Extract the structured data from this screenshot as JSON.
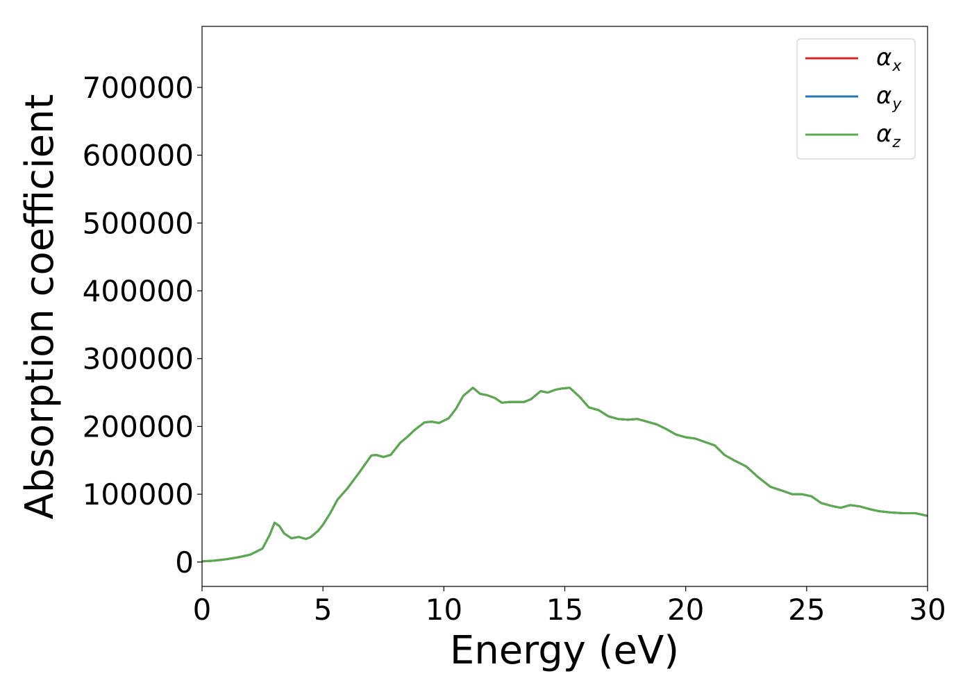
{
  "chart_data": {
    "type": "line",
    "xlabel": "Energy (eV)",
    "ylabel": "Absorption coefficient",
    "xlim": [
      0,
      30
    ],
    "ylim": [
      -36000,
      790000
    ],
    "xticks": [
      0,
      5,
      10,
      15,
      20,
      25,
      30
    ],
    "xtick_labels": [
      "0",
      "5",
      "10",
      "15",
      "20",
      "25",
      "30"
    ],
    "yticks": [
      0,
      100000,
      200000,
      300000,
      400000,
      500000,
      600000,
      700000
    ],
    "ytick_labels": [
      "0",
      "100000",
      "200000",
      "300000",
      "400000",
      "500000",
      "600000",
      "700000"
    ],
    "grid": false,
    "legend_position": "top-right",
    "x": [
      0,
      0.5,
      1.0,
      1.5,
      2.0,
      2.5,
      2.8,
      3.0,
      3.2,
      3.4,
      3.7,
      4.0,
      4.3,
      4.5,
      4.8,
      5.0,
      5.3,
      5.6,
      6.0,
      6.5,
      7.0,
      7.2,
      7.5,
      7.8,
      8.2,
      8.5,
      8.8,
      9.2,
      9.5,
      9.8,
      10.2,
      10.5,
      10.8,
      11.2,
      11.5,
      11.8,
      12.1,
      12.4,
      12.7,
      13.0,
      13.3,
      13.6,
      14.0,
      14.3,
      14.6,
      14.9,
      15.2,
      15.6,
      16.0,
      16.4,
      16.8,
      17.2,
      17.6,
      18.0,
      18.4,
      18.8,
      19.2,
      19.6,
      20.0,
      20.4,
      20.8,
      21.2,
      21.6,
      22.0,
      22.5,
      23.0,
      23.5,
      24.0,
      24.4,
      24.8,
      25.2,
      25.6,
      26.0,
      26.4,
      26.8,
      27.2,
      27.6,
      28.0,
      28.5,
      29.0,
      29.5,
      30.0
    ],
    "series": [
      {
        "name": "α_x",
        "color": "#d62728",
        "values": [
          1000,
          2000,
          4000,
          7000,
          11000,
          20000,
          40000,
          58000,
          53000,
          42000,
          35000,
          37000,
          34000,
          37000,
          46000,
          55000,
          72000,
          92000,
          108000,
          132000,
          157000,
          158000,
          155000,
          158000,
          176000,
          185000,
          195000,
          206000,
          207000,
          205000,
          212000,
          226000,
          245000,
          257000,
          248000,
          246000,
          242000,
          235000,
          236000,
          236000,
          236000,
          240000,
          252000,
          250000,
          254000,
          256000,
          257000,
          244000,
          228000,
          224000,
          215000,
          211000,
          210000,
          211000,
          207000,
          203000,
          196000,
          188000,
          184000,
          182000,
          177000,
          172000,
          158000,
          150000,
          141000,
          125000,
          111000,
          105000,
          100000,
          100000,
          97000,
          87000,
          83000,
          80000,
          84000,
          82000,
          78000,
          75000,
          73000,
          72000,
          72000,
          68000
        ]
      },
      {
        "name": "α_y",
        "color": "#1f77b4",
        "values": [
          1000,
          2000,
          4000,
          7000,
          11000,
          20000,
          40000,
          58000,
          53000,
          42000,
          35000,
          37000,
          34000,
          37000,
          46000,
          55000,
          72000,
          92000,
          108000,
          132000,
          157000,
          158000,
          155000,
          158000,
          176000,
          185000,
          195000,
          206000,
          207000,
          205000,
          212000,
          226000,
          245000,
          257000,
          248000,
          246000,
          242000,
          235000,
          236000,
          236000,
          236000,
          240000,
          252000,
          250000,
          254000,
          256000,
          257000,
          244000,
          228000,
          224000,
          215000,
          211000,
          210000,
          211000,
          207000,
          203000,
          196000,
          188000,
          184000,
          182000,
          177000,
          172000,
          158000,
          150000,
          141000,
          125000,
          111000,
          105000,
          100000,
          100000,
          97000,
          87000,
          83000,
          80000,
          84000,
          82000,
          78000,
          75000,
          73000,
          72000,
          72000,
          68000
        ]
      },
      {
        "name": "α_z",
        "color": "#5aaa4d",
        "values": [
          1000,
          2000,
          4000,
          7000,
          11000,
          20000,
          40000,
          58000,
          53000,
          42000,
          35000,
          37000,
          34000,
          37000,
          46000,
          55000,
          72000,
          92000,
          108000,
          132000,
          157000,
          158000,
          155000,
          158000,
          176000,
          185000,
          195000,
          206000,
          207000,
          205000,
          212000,
          226000,
          245000,
          257000,
          248000,
          246000,
          242000,
          235000,
          236000,
          236000,
          236000,
          240000,
          252000,
          250000,
          254000,
          256000,
          257000,
          244000,
          228000,
          224000,
          215000,
          211000,
          210000,
          211000,
          207000,
          203000,
          196000,
          188000,
          184000,
          182000,
          177000,
          172000,
          158000,
          150000,
          141000,
          125000,
          111000,
          105000,
          100000,
          100000,
          97000,
          87000,
          83000,
          80000,
          84000,
          82000,
          78000,
          75000,
          73000,
          72000,
          72000,
          68000
        ]
      }
    ],
    "legend": [
      {
        "symbol": "α",
        "subscript": "x",
        "color": "#d62728"
      },
      {
        "symbol": "α",
        "subscript": "y",
        "color": "#1f77b4"
      },
      {
        "symbol": "α",
        "subscript": "z",
        "color": "#5aaa4d"
      }
    ]
  }
}
